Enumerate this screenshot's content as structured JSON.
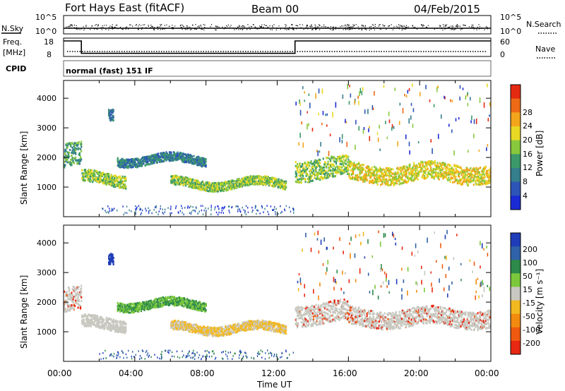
{
  "header": {
    "station": "Fort Hays East (fitACF)",
    "beam": "Beam 00",
    "date": "04/Feb/2015"
  },
  "strips": {
    "nsky_label": "N.Sky",
    "nsearch_label": "N.Search",
    "freq_label_1": "Freq.",
    "freq_label_2": "[MHz]",
    "nave_label": "Nave",
    "cpid_label": "CPID",
    "cpid_value": "normal (fast) 151 IF",
    "noise_ticks_left": [
      "10^5",
      "10^0"
    ],
    "noise_ticks_right": [
      "10^5",
      "10^0"
    ],
    "freq_ticks": [
      "18",
      "8"
    ],
    "nave_ticks": [
      "60",
      "0"
    ]
  },
  "xaxis": {
    "label": "Time UT",
    "ticks": [
      "00:00",
      "04:00",
      "08:00",
      "12:00",
      "16:00",
      "20:00",
      "00:00"
    ]
  },
  "yaxis": {
    "label": "Slant Range [km]",
    "ticks": [
      "1000",
      "2000",
      "3000",
      "4000"
    ]
  },
  "power_scale": {
    "label": "Power [dB]",
    "ticks": [
      "4",
      "8",
      "12",
      "16",
      "20",
      "24",
      "28"
    ],
    "colors": [
      "#1a2bd6",
      "#2d55b8",
      "#357e8c",
      "#3c9a6a",
      "#88c83c",
      "#e8d824",
      "#f3a51b",
      "#ee6a16",
      "#e52a12"
    ]
  },
  "velocity_scale": {
    "label": "Velocity [m s⁻¹]",
    "ticks": [
      "200",
      "100",
      "50",
      "15",
      "-15",
      "-50",
      "-100",
      "-200"
    ],
    "colors": [
      "#1f3db8",
      "#2f62a8",
      "#2e8a4a",
      "#7cc83c",
      "#c8c8c0",
      "#f2b820",
      "#f28a10",
      "#ef5a10",
      "#e82812"
    ]
  },
  "chart_data": {
    "type": "heatmap",
    "title": "Fort Hays East (fitACF)",
    "xlabel": "Time UT",
    "ylabel": "Slant Range [km]",
    "xlim": [
      "00:00",
      "24:00"
    ],
    "ylim": [
      0,
      4600
    ],
    "frequency_mhz": [
      {
        "from": 0,
        "to": 1,
        "value": 18
      },
      {
        "from": 1,
        "to": 13,
        "value": 10
      },
      {
        "from": 13,
        "to": 24,
        "value": 18
      }
    ],
    "power_bands": [
      {
        "t0": 0,
        "t1": 1,
        "r0": 1700,
        "r1": 2500,
        "power": 16
      },
      {
        "t0": 1,
        "t1": 3.5,
        "r0": 1100,
        "r1": 1500,
        "power": 20
      },
      {
        "t0": 2.5,
        "t1": 2.8,
        "r0": 3300,
        "r1": 3700,
        "power": 10
      },
      {
        "t0": 3,
        "t1": 8,
        "r0": 1800,
        "r1": 2100,
        "power": 12
      },
      {
        "t0": 6,
        "t1": 12.5,
        "r0": 1000,
        "r1": 1300,
        "power": 18
      },
      {
        "t0": 13,
        "t1": 16,
        "r0": 1300,
        "r1": 2000,
        "power": 20
      },
      {
        "t0": 16,
        "t1": 24,
        "r0": 1200,
        "r1": 1800,
        "power": 24
      }
    ]
  }
}
